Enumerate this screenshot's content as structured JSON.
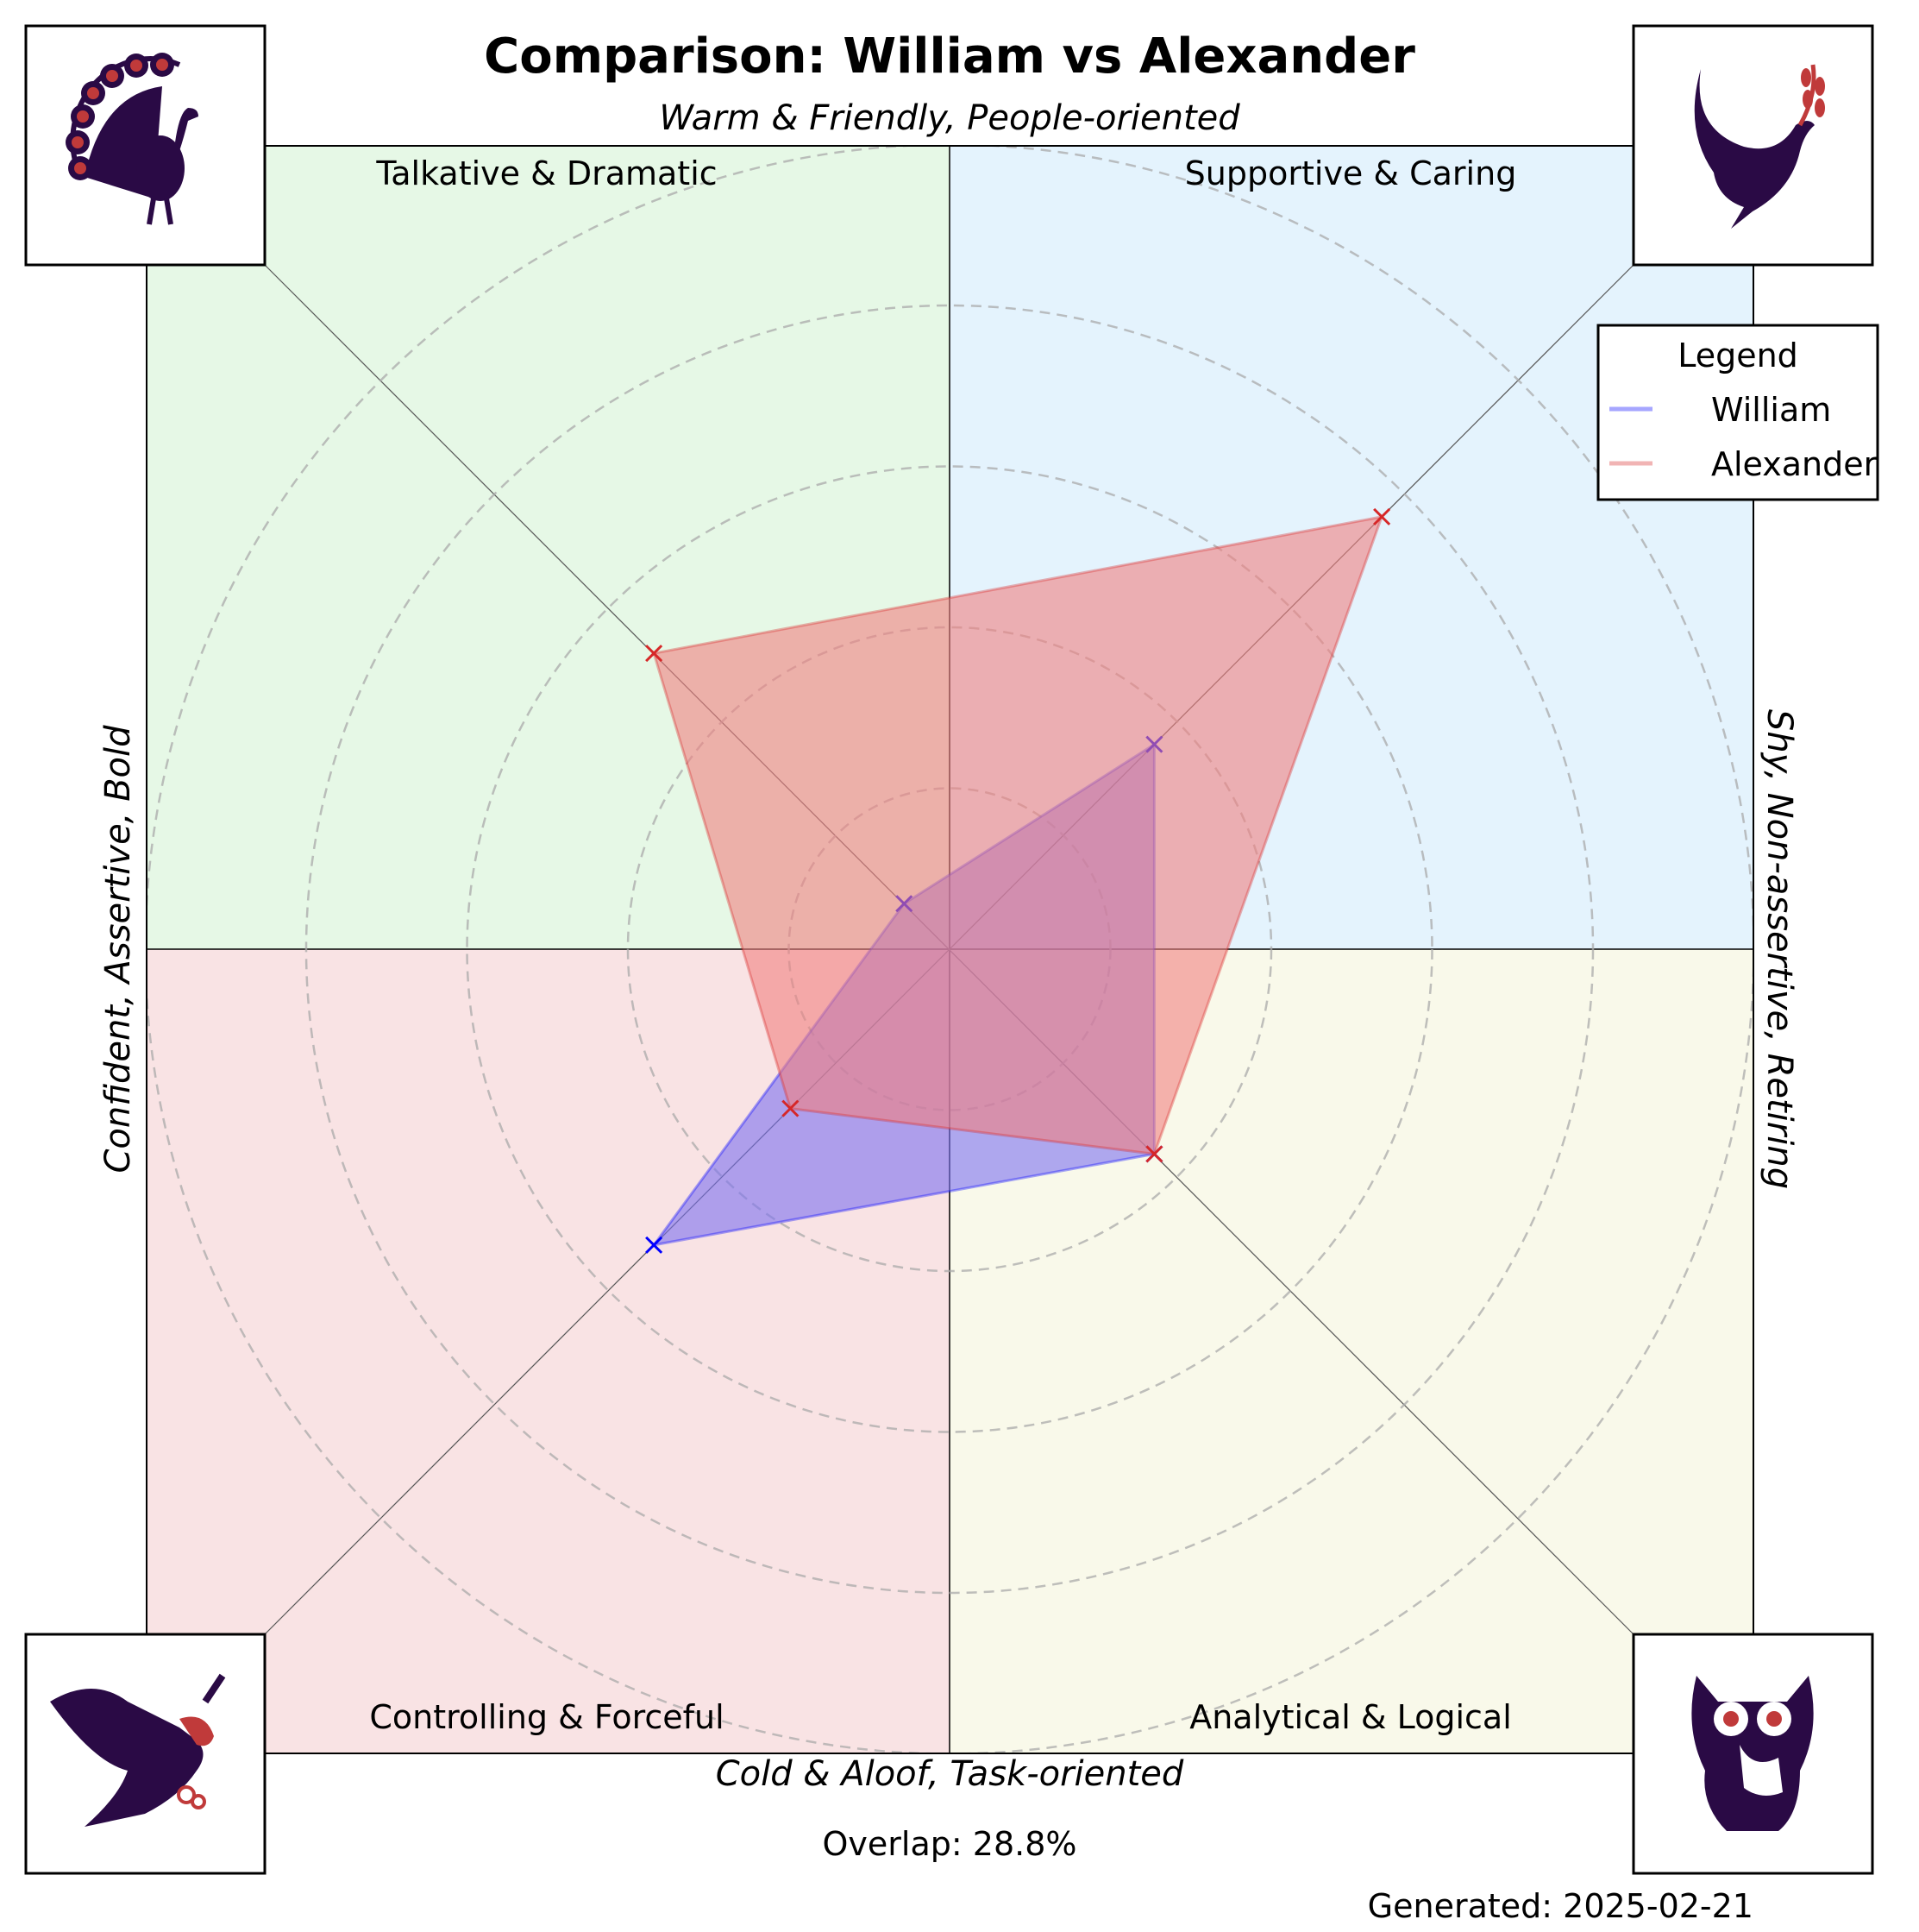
{
  "title": "Comparison: William vs Alexander",
  "chart_data": {
    "type": "radar",
    "title": "Comparison: William vs Alexander",
    "axes": {
      "top": "Warm & Friendly, People-oriented",
      "bottom": "Cold & Aloof, Task-oriented",
      "left": "Confident, Assertive, Bold",
      "right": "Shy, Non-assertive, Retiring"
    },
    "rlim": [
      0,
      5
    ],
    "rings": [
      1,
      2,
      3,
      4,
      5
    ],
    "grid": true,
    "quadrants": [
      {
        "label": "Talkative & Dramatic",
        "color": "#e6f8e6",
        "icon": "peacock-icon"
      },
      {
        "label": "Supportive & Caring",
        "color": "#e4f3fd",
        "icon": "dove-icon"
      },
      {
        "label": "Controlling & Forceful",
        "color": "#f9e3e4",
        "icon": "eagle-icon"
      },
      {
        "label": "Analytical & Logical",
        "color": "#f9f9ea",
        "icon": "owl-icon"
      }
    ],
    "categories": [
      "Supportive & Caring",
      "Talkative & Dramatic",
      "Controlling & Forceful",
      "Analytical & Logical"
    ],
    "series": [
      {
        "name": "William",
        "color": "#0000ff",
        "fill": "#7b6ff0",
        "values": [
          1.8,
          0.4,
          2.6,
          1.8
        ]
      },
      {
        "name": "Alexander",
        "color": "#d62728",
        "fill": "#f08080",
        "values": [
          3.8,
          2.6,
          1.4,
          1.8
        ]
      }
    ],
    "legend": {
      "title": "Legend",
      "position": "top-right"
    }
  },
  "overlap_text": "Overlap: 28.8%",
  "generated_text": "Generated: 2025-02-21"
}
